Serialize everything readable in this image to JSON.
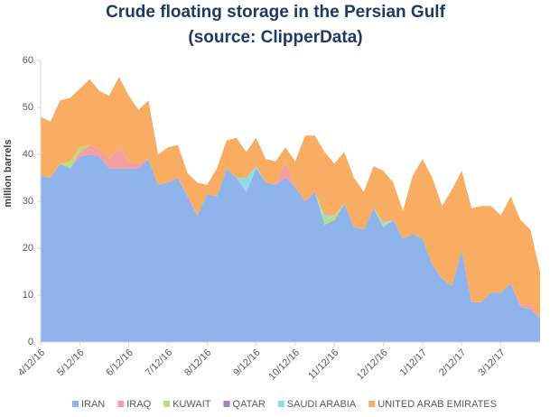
{
  "chart_data": {
    "type": "stacked_area",
    "title": "Crude floating storage in the Persian Gulf",
    "subtitle": "(source: ClipperData)",
    "y_label": "million barrels",
    "categories": [
      "4/12/16",
      null,
      null,
      null,
      "5/12/16",
      null,
      null,
      null,
      null,
      "6/12/16",
      null,
      null,
      null,
      "7/12/16",
      null,
      null,
      null,
      "8/12/16",
      null,
      null,
      null,
      null,
      "9/12/16",
      null,
      null,
      null,
      "10/12/16",
      null,
      null,
      null,
      "11/12/16",
      null,
      null,
      null,
      null,
      "12/12/16",
      null,
      null,
      null,
      "1/12/17",
      null,
      null,
      null,
      "2/12/17",
      null,
      null,
      null,
      "3/12/17",
      null,
      null,
      null,
      null
    ],
    "ylim": [
      0,
      60
    ],
    "yticks": [
      0,
      10,
      20,
      30,
      40,
      50,
      60
    ],
    "grid": false,
    "legend": "bottom",
    "series": [
      {
        "name": "IRAN",
        "color": "#8fb4ec",
        "values": [
          35.5,
          35,
          38,
          37,
          39.5,
          40,
          39.5,
          37,
          37,
          37,
          37,
          39,
          33.5,
          34,
          35,
          31,
          27,
          31.5,
          31,
          37,
          35,
          32,
          37,
          34,
          33.5,
          35,
          33,
          30,
          32,
          25,
          26,
          29.5,
          24.5,
          24,
          28.5,
          24.5,
          26,
          22,
          23,
          22,
          16.5,
          13.5,
          12,
          19.5,
          8.5,
          8.5,
          10.5,
          10.5,
          12.5,
          7.5,
          7,
          5
        ]
      },
      {
        "name": "IRAQ",
        "color": "#f4a0a0",
        "values": [
          0,
          0,
          0,
          0,
          1,
          2,
          1.5,
          2,
          4.5,
          1.5,
          1,
          0,
          0,
          0,
          0,
          0.5,
          0,
          0,
          0,
          0,
          0,
          0,
          0,
          0,
          0,
          3.5,
          0,
          0,
          0,
          0,
          0,
          0,
          0,
          0,
          0,
          0,
          0,
          0,
          0,
          0,
          0,
          0,
          0,
          0,
          0,
          0,
          0,
          0,
          0,
          0.5,
          1,
          0.5
        ]
      },
      {
        "name": "KUWAIT",
        "color": "#b7e07c",
        "values": [
          0,
          0,
          0,
          1.5,
          1,
          0,
          0,
          0,
          0,
          0,
          0,
          0,
          0,
          0,
          0,
          0,
          0,
          0,
          0,
          0,
          0,
          0,
          0,
          0,
          0,
          0,
          0,
          0,
          0,
          1,
          1,
          0,
          0,
          0,
          0,
          0.5,
          0,
          0,
          0,
          0,
          0,
          0,
          0,
          0,
          0,
          0,
          0,
          0,
          0,
          0,
          0,
          0
        ]
      },
      {
        "name": "QATAR",
        "color": "#a584c4",
        "values": [
          0,
          0,
          0,
          0,
          0,
          0,
          0,
          0,
          0,
          0,
          0,
          0,
          0,
          0,
          0,
          0,
          0,
          0,
          0,
          0,
          0,
          0,
          0,
          0,
          0,
          0,
          0,
          0,
          0,
          0,
          0,
          0,
          0,
          0,
          0,
          0,
          0,
          0,
          0,
          0,
          0,
          0,
          0,
          0,
          0,
          0,
          0,
          0,
          0,
          0,
          0,
          0
        ]
      },
      {
        "name": "SAUDI ARABIA",
        "color": "#8fdce6",
        "values": [
          0,
          0,
          0,
          0,
          0,
          0,
          0,
          0,
          0,
          0,
          0,
          0,
          0,
          0,
          0,
          0,
          0,
          0,
          0,
          0,
          0,
          3,
          0.5,
          0,
          0,
          0,
          0,
          0,
          0,
          1,
          0,
          0,
          0,
          0,
          0,
          0.5,
          0,
          0,
          0,
          0,
          0,
          0,
          0,
          0,
          0,
          0,
          0,
          0,
          0,
          0,
          0,
          0
        ]
      },
      {
        "name": "UNITED ARAB EMIRATES",
        "color": "#f9ad62",
        "values": [
          12.5,
          12,
          13.5,
          13.5,
          12.5,
          14,
          12.5,
          13.5,
          15,
          14,
          11.5,
          12.5,
          6.5,
          7.5,
          7,
          4.5,
          7,
          2,
          6,
          6,
          8.5,
          5.5,
          6,
          5,
          5,
          3,
          5.5,
          14,
          12,
          13.5,
          11,
          11,
          10.5,
          8,
          9,
          11,
          8,
          6,
          12.5,
          17,
          18.5,
          15.5,
          20.5,
          17,
          20,
          20.5,
          18.5,
          16.5,
          18.5,
          18,
          16,
          9.5
        ]
      }
    ]
  }
}
